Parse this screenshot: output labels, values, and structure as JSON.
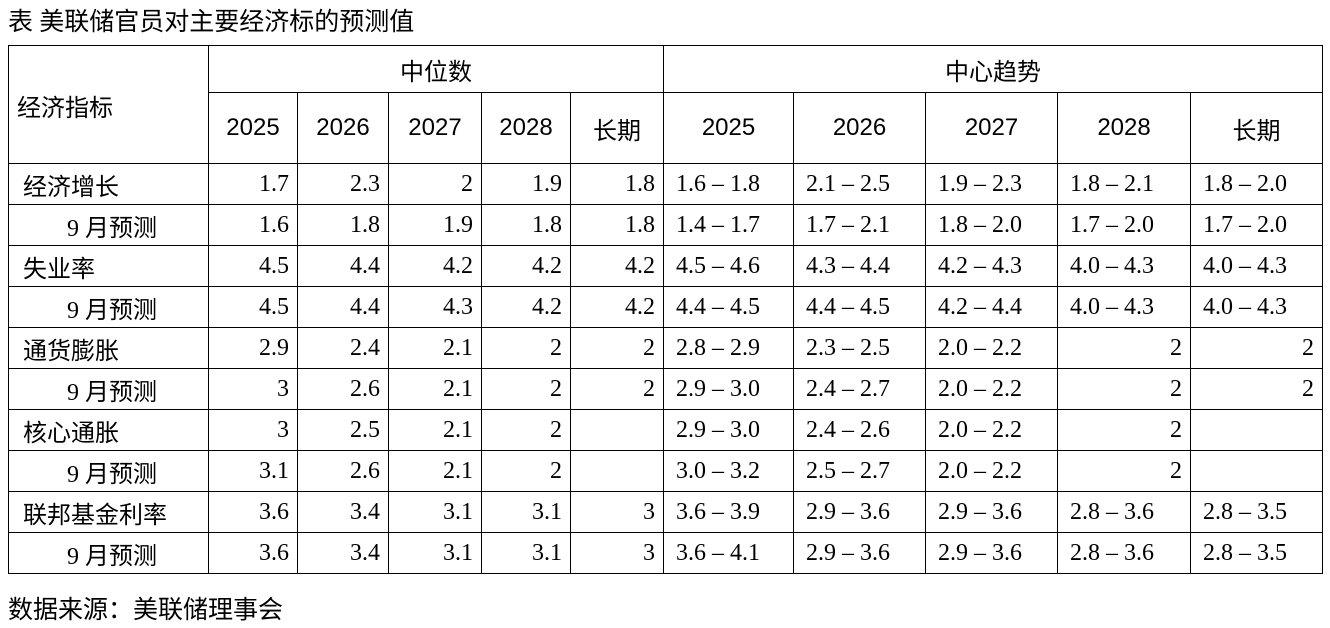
{
  "title": "表 美联储官员对主要经济标的预测值",
  "table": {
    "corner": "经济指标",
    "groups": [
      "中位数",
      "中心趋势"
    ],
    "columns": [
      [
        2025,
        2026,
        2027,
        2028,
        "长期"
      ],
      [
        2025,
        2026,
        2027,
        2028,
        "长期"
      ]
    ],
    "rows": [
      {
        "label": "经济增长",
        "median": [
          1.7,
          2.3,
          2,
          1.9,
          1.8
        ],
        "central_tendency": [
          "1.6 – 1.8",
          "2.1 – 2.5",
          "1.9 – 2.3",
          "1.8 – 2.1",
          "1.8 – 2.0"
        ]
      },
      {
        "label": "9 月预测",
        "median": [
          1.6,
          1.8,
          1.9,
          1.8,
          1.8
        ],
        "central_tendency": [
          "1.4 – 1.7",
          "1.7 – 2.1",
          "1.8 – 2.0",
          "1.7 – 2.0",
          "1.7 – 2.0"
        ]
      },
      {
        "label": "失业率",
        "median": [
          4.5,
          4.4,
          4.2,
          4.2,
          4.2
        ],
        "central_tendency": [
          "4.5 – 4.6",
          "4.3 – 4.4",
          "4.2 – 4.3",
          "4.0 – 4.3",
          "4.0 – 4.3"
        ]
      },
      {
        "label": "9 月预测",
        "median": [
          4.5,
          4.4,
          4.3,
          4.2,
          4.2
        ],
        "central_tendency": [
          "4.4 – 4.5",
          "4.4 – 4.5",
          "4.2 – 4.4",
          "4.0 – 4.3",
          "4.0 – 4.3"
        ]
      },
      {
        "label": "通货膨胀",
        "median": [
          2.9,
          2.4,
          2.1,
          2,
          2
        ],
        "central_tendency": [
          "2.8 – 2.9",
          "2.3 – 2.5",
          "2.0 – 2.2",
          2,
          2
        ]
      },
      {
        "label": "9 月预测",
        "median": [
          3,
          2.6,
          2.1,
          2,
          2
        ],
        "central_tendency": [
          "2.9 – 3.0",
          "2.4 – 2.7",
          "2.0 – 2.2",
          2,
          2
        ]
      },
      {
        "label": "核心通胀",
        "median": [
          3,
          2.5,
          2.1,
          2,
          null
        ],
        "central_tendency": [
          "2.9 – 3.0",
          "2.4 – 2.6",
          "2.0 – 2.2",
          2,
          null
        ]
      },
      {
        "label": "9 月预测",
        "median": [
          3.1,
          2.6,
          2.1,
          2,
          null
        ],
        "central_tendency": [
          "3.0 – 3.2",
          "2.5 – 2.7",
          "2.0 – 2.2",
          2,
          null
        ]
      },
      {
        "label": "联邦基金利率",
        "median": [
          3.6,
          3.4,
          3.1,
          3.1,
          3
        ],
        "central_tendency": [
          "3.6 – 3.9",
          "2.9 – 3.6",
          "2.9 – 3.6",
          "2.8 – 3.6",
          "2.8 – 3.5"
        ]
      },
      {
        "label": "9 月预测",
        "median": [
          3.6,
          3.4,
          3.1,
          3.1,
          3
        ],
        "central_tendency": [
          "3.6 – 4.1",
          "2.9 – 3.6",
          "2.9 – 3.6",
          "2.8 – 3.6",
          "2.8 – 3.5"
        ]
      }
    ]
  },
  "source": "数据来源：美联储理事会"
}
